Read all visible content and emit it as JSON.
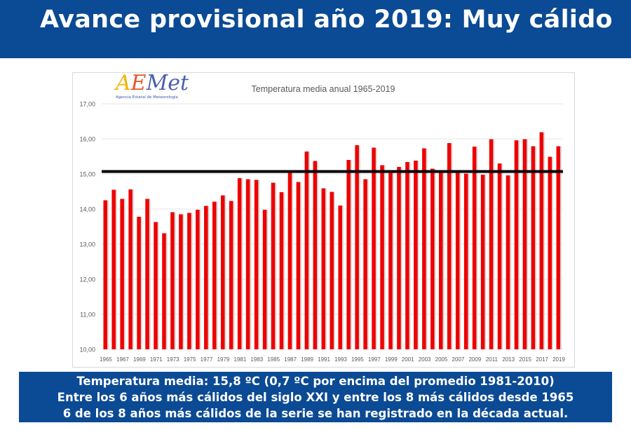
{
  "header": {
    "title": "Avance provisional año 2019: Muy cálido"
  },
  "logo": {
    "text": "AEMet",
    "subtitle": "Agencia Estatal de Meteorología"
  },
  "chart_data": {
    "type": "bar",
    "title": "Temperatura media anual 1965-2019",
    "xlabel": "",
    "ylabel": "",
    "ylim": [
      10,
      17
    ],
    "yticks": [
      "10,00",
      "11,00",
      "12,00",
      "13,00",
      "14,00",
      "15,00",
      "16,00",
      "17,00"
    ],
    "grid": true,
    "bar_color": "#ee0000",
    "reference_line": {
      "value": 15.07,
      "color": "#000000"
    },
    "categories": [
      1965,
      1966,
      1967,
      1968,
      1969,
      1970,
      1971,
      1972,
      1973,
      1974,
      1975,
      1976,
      1977,
      1978,
      1979,
      1980,
      1981,
      1982,
      1983,
      1984,
      1985,
      1986,
      1987,
      1988,
      1989,
      1990,
      1991,
      1992,
      1993,
      1994,
      1995,
      1996,
      1997,
      1998,
      1999,
      2000,
      2001,
      2002,
      2003,
      2004,
      2005,
      2006,
      2007,
      2008,
      2009,
      2010,
      2011,
      2012,
      2013,
      2014,
      2015,
      2016,
      2017,
      2018,
      2019
    ],
    "values": [
      14.25,
      14.55,
      14.29,
      14.56,
      13.78,
      14.29,
      13.63,
      13.31,
      13.91,
      13.85,
      13.89,
      13.98,
      14.09,
      14.21,
      14.39,
      14.23,
      14.88,
      14.85,
      14.83,
      13.98,
      14.75,
      14.48,
      15.05,
      14.77,
      15.64,
      15.37,
      14.59,
      14.49,
      14.1,
      15.4,
      15.82,
      14.85,
      15.75,
      15.25,
      15.05,
      15.2,
      15.34,
      15.38,
      15.73,
      15.15,
      15.05,
      15.88,
      15.05,
      15.01,
      15.78,
      14.98,
      15.99,
      15.3,
      14.96,
      15.96,
      15.99,
      15.79,
      16.19,
      15.49,
      15.79
    ]
  },
  "footer": {
    "lines": [
      "Temperatura media: 15,8 ºC (0,7 ºC por encima del promedio 1981-2010)",
      "Entre los 6 años más cálidos del siglo XXI y entre los 8 más cálidos desde 1965",
      "6 de los 8 años más cálidos de la serie se han registrado en la década actual."
    ]
  }
}
